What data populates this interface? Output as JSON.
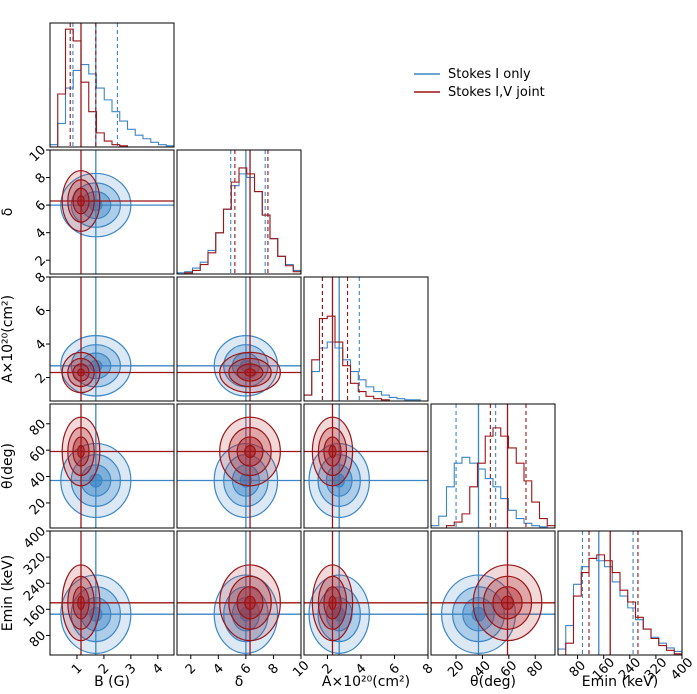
{
  "chart_data": {
    "type": "corner",
    "title": "",
    "colors": {
      "stokes_i": "#3b86c6",
      "stokes_iv": "#9b1416",
      "fill_i": "#3b86c6",
      "fill_iv": "#b1262b"
    },
    "legend": {
      "placement": "top-right",
      "entries": [
        {
          "name": "Stokes I only",
          "color": "#3b86c6"
        },
        {
          "name": "Stokes I,V joint",
          "color": "#9b1416"
        }
      ]
    },
    "parameters": [
      {
        "key": "B",
        "label": "B (G)",
        "range": [
          0,
          4.6
        ],
        "ticks": [
          1,
          2,
          3,
          4
        ],
        "tick_labels": [
          "1",
          "2",
          "3",
          "4"
        ]
      },
      {
        "key": "delta",
        "label": "δ",
        "range": [
          1.0,
          10.0
        ],
        "ticks": [
          2,
          4,
          6,
          8,
          10
        ],
        "tick_labels": [
          "2",
          "4",
          "6",
          "8",
          "10"
        ]
      },
      {
        "key": "A",
        "label": "A×10²⁰(cm²)",
        "range": [
          0.6,
          8.0
        ],
        "ticks": [
          2,
          4,
          6,
          8
        ],
        "tick_labels": [
          "2",
          "4",
          "6",
          "8"
        ]
      },
      {
        "key": "theta",
        "label": "θ(deg)",
        "range": [
          1,
          95
        ],
        "ticks": [
          20,
          40,
          60,
          80
        ],
        "tick_labels": [
          "20",
          "40",
          "60",
          "80"
        ]
      },
      {
        "key": "Emin",
        "label": "Emin (keV)",
        "range": [
          20,
          400
        ],
        "ticks": [
          80,
          160,
          240,
          320,
          400
        ],
        "tick_labels": [
          "80",
          "160",
          "240",
          "320",
          "400"
        ]
      }
    ],
    "series": [
      {
        "name": "Stokes I only",
        "median": [
          1.7,
          6.0,
          2.7,
          37,
          145
        ],
        "q16": [
          0.85,
          4.9,
          1.7,
          20,
          95
        ],
        "q84": [
          2.5,
          7.4,
          3.9,
          50,
          250
        ],
        "sd": [
          0.65,
          1.15,
          0.9,
          14,
          60
        ],
        "histograms": [
          [
            0.02,
            0.2,
            0.5,
            0.65,
            0.7,
            0.62,
            0.5,
            0.4,
            0.3,
            0.22,
            0.15,
            0.1,
            0.07,
            0.04,
            0.02,
            0.01
          ],
          [
            0.01,
            0.02,
            0.05,
            0.1,
            0.2,
            0.35,
            0.55,
            0.75,
            0.85,
            0.82,
            0.7,
            0.5,
            0.3,
            0.15,
            0.08,
            0.03
          ],
          [
            0.05,
            0.25,
            0.45,
            0.5,
            0.45,
            0.35,
            0.25,
            0.18,
            0.12,
            0.08,
            0.05,
            0.03,
            0.02,
            0.01,
            0.01,
            0.0
          ],
          [
            0.02,
            0.1,
            0.35,
            0.55,
            0.6,
            0.55,
            0.5,
            0.42,
            0.35,
            0.25,
            0.15,
            0.08,
            0.04,
            0.02,
            0.01,
            0.0
          ],
          [
            0.05,
            0.25,
            0.6,
            0.75,
            0.82,
            0.8,
            0.75,
            0.62,
            0.5,
            0.4,
            0.3,
            0.22,
            0.15,
            0.1,
            0.06,
            0.03
          ]
        ]
      },
      {
        "name": "Stokes I,V joint",
        "median": [
          1.15,
          6.3,
          2.3,
          59,
          180
        ],
        "q16": [
          0.75,
          5.2,
          1.7,
          46,
          115
        ],
        "q84": [
          1.7,
          7.6,
          3.2,
          73,
          265
        ],
        "sd": [
          0.35,
          1.1,
          0.6,
          13,
          58
        ],
        "histograms": [
          [
            0.0,
            0.45,
            1.0,
            0.9,
            0.55,
            0.3,
            0.12,
            0.05,
            0.02,
            0.01,
            0.0,
            0.0,
            0.0,
            0.0,
            0.0,
            0.0
          ],
          [
            0.0,
            0.01,
            0.03,
            0.08,
            0.18,
            0.35,
            0.55,
            0.78,
            0.9,
            0.85,
            0.7,
            0.5,
            0.3,
            0.15,
            0.07,
            0.02
          ],
          [
            0.05,
            0.35,
            0.7,
            0.72,
            0.5,
            0.3,
            0.15,
            0.08,
            0.04,
            0.02,
            0.01,
            0.0,
            0.0,
            0.0,
            0.0,
            0.0
          ],
          [
            0.0,
            0.0,
            0.02,
            0.05,
            0.12,
            0.35,
            0.55,
            0.78,
            0.85,
            0.78,
            0.68,
            0.55,
            0.4,
            0.22,
            0.08,
            0.02
          ],
          [
            0.0,
            0.1,
            0.5,
            0.7,
            0.82,
            0.85,
            0.8,
            0.7,
            0.55,
            0.45,
            0.32,
            0.22,
            0.14,
            0.08,
            0.04,
            0.01
          ]
        ]
      }
    ]
  }
}
